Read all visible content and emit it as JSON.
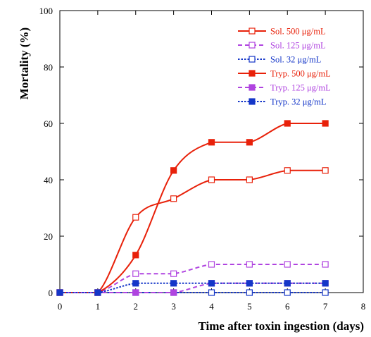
{
  "chart_data": {
    "type": "line",
    "title": "",
    "xlabel": "Time after toxin ingestion (days)",
    "ylabel": "Mortality (%)",
    "xlim": [
      0,
      8
    ],
    "ylim": [
      0,
      100
    ],
    "xticks": [
      0,
      1,
      2,
      3,
      4,
      5,
      6,
      7,
      8
    ],
    "yticks": [
      0,
      20,
      40,
      60,
      80,
      100
    ],
    "grid": false,
    "legend_position": "top-right",
    "x": [
      0,
      1,
      2,
      3,
      4,
      5,
      6,
      7
    ],
    "series": [
      {
        "name": "Sol. 500 μg/mL",
        "color": "#e8210a",
        "dash": "solid",
        "marker": "open-square",
        "values": [
          0,
          0,
          26.7,
          33.3,
          40,
          40,
          43.3,
          43.3
        ]
      },
      {
        "name": "Sol. 125 μg/mL",
        "color": "#b044e0",
        "dash": "dashed",
        "marker": "open-square",
        "values": [
          0,
          0,
          6.7,
          6.7,
          10,
          10,
          10,
          10
        ]
      },
      {
        "name": "Sol. 32 μg/mL",
        "color": "#1436c8",
        "dash": "dotted",
        "marker": "open-square",
        "values": [
          0,
          0,
          0,
          0,
          0,
          0,
          0,
          0
        ]
      },
      {
        "name": "Tryp. 500 μg/mL",
        "color": "#e8210a",
        "dash": "solid",
        "marker": "filled-square",
        "values": [
          0,
          0,
          13.3,
          43.3,
          53.3,
          53.3,
          60,
          60
        ]
      },
      {
        "name": "Tryp. 125 μg/mL",
        "color": "#b044e0",
        "dash": "dashed",
        "marker": "filled-square",
        "values": [
          0,
          0,
          0,
          0,
          3.3,
          3.3,
          3.3,
          3.3
        ]
      },
      {
        "name": "Tryp. 32 μg/mL",
        "color": "#1436c8",
        "dash": "dotted",
        "marker": "filled-square",
        "values": [
          0,
          0,
          3.3,
          3.3,
          3.3,
          3.3,
          3.3,
          3.3
        ]
      }
    ]
  }
}
